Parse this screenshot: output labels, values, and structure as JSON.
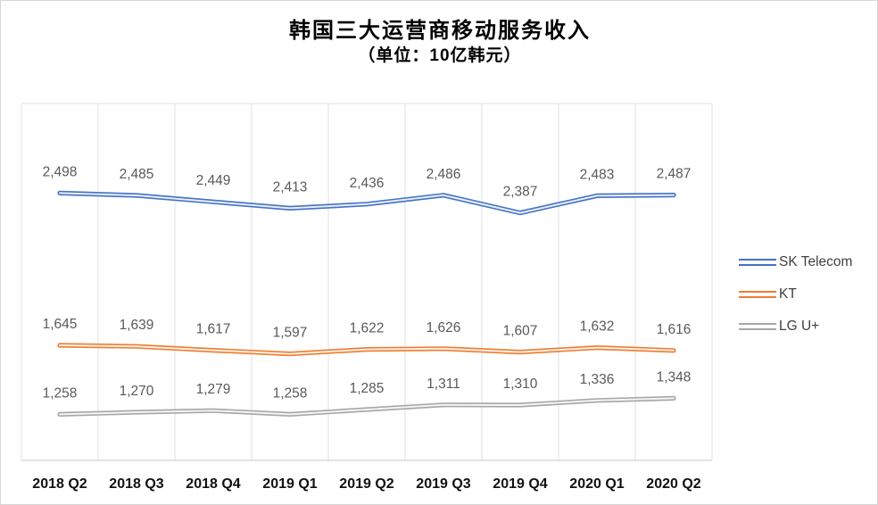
{
  "header": {
    "title": "韩国三大运营商移动服务收入",
    "subtitle": "（单位：10亿韩元）"
  },
  "legend": {
    "position": "right",
    "items": [
      {
        "label": "SK Telecom",
        "color": "#4472C4"
      },
      {
        "label": "KT",
        "color": "#ED7D31"
      },
      {
        "label": "LG U+",
        "color": "#A6A6A6"
      }
    ]
  },
  "chart_data": {
    "type": "line",
    "title": "韩国三大运营商移动服务收入",
    "subtitle": "（单位：10亿韩元）",
    "xlabel": "",
    "ylabel": "",
    "ylim": [
      1000,
      3000
    ],
    "grid": "vertical-only",
    "legend_position": "right",
    "line_style": "double-compound",
    "value_labels": "above-points, thousands comma format",
    "categories": [
      "2018 Q2",
      "2018 Q3",
      "2018 Q4",
      "2019 Q1",
      "2019 Q2",
      "2019 Q3",
      "2019 Q4",
      "2020 Q1",
      "2020 Q2"
    ],
    "series": [
      {
        "name": "SK Telecom",
        "color": "#4472C4",
        "values": [
          2498,
          2485,
          2449,
          2413,
          2436,
          2486,
          2387,
          2483,
          2487
        ]
      },
      {
        "name": "KT",
        "color": "#ED7D31",
        "values": [
          1645,
          1639,
          1617,
          1597,
          1622,
          1626,
          1607,
          1632,
          1616
        ]
      },
      {
        "name": "LG U+",
        "color": "#A6A6A6",
        "values": [
          1258,
          1270,
          1279,
          1258,
          1285,
          1311,
          1310,
          1336,
          1348
        ]
      }
    ]
  }
}
